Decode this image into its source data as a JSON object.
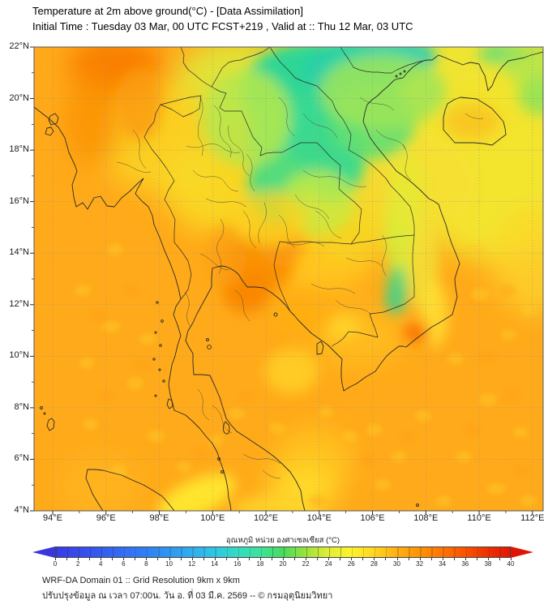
{
  "header": {
    "title": "Temperature at 2m above ground(°C) - [Data Assimilation]",
    "subtitle": "Initial Time : Tuesday 03 Mar, 00 UTC FCST+219 , Valid at :: Thu 12 Mar, 03 UTC"
  },
  "map": {
    "lat_labels": [
      "22°N",
      "20°N",
      "18°N",
      "16°N",
      "14°N",
      "12°N",
      "10°N",
      "8°N",
      "6°N",
      "4°N"
    ],
    "lon_labels": [
      "94°E",
      "96°E",
      "98°E",
      "100°E",
      "102°E",
      "104°E",
      "106°E",
      "108°E",
      "110°E",
      "112°E"
    ]
  },
  "colorbar": {
    "label": "อุณหภูมิ หน่วย องศาเซลเซียส (°C)",
    "ticks": [
      "0",
      "2",
      "4",
      "6",
      "8",
      "10",
      "12",
      "14",
      "16",
      "18",
      "20",
      "22",
      "24",
      "26",
      "28",
      "30",
      "32",
      "34",
      "36",
      "38",
      "40"
    ],
    "min_value": 0,
    "max_value": 40,
    "left_arrow_color": "#3A36DC",
    "right_arrow_color": "#DF1405"
  },
  "footer": {
    "line1": "WRF-DA Domain 01 :: Grid Resolution 9km x 9km",
    "line2": "ปรับปรุงข้อมูล ณ เวลา 07:00น. วัน อ. ที่ 03 มี.ค. 2569 -- © กรมอุตุนิยมวิทยา"
  }
}
